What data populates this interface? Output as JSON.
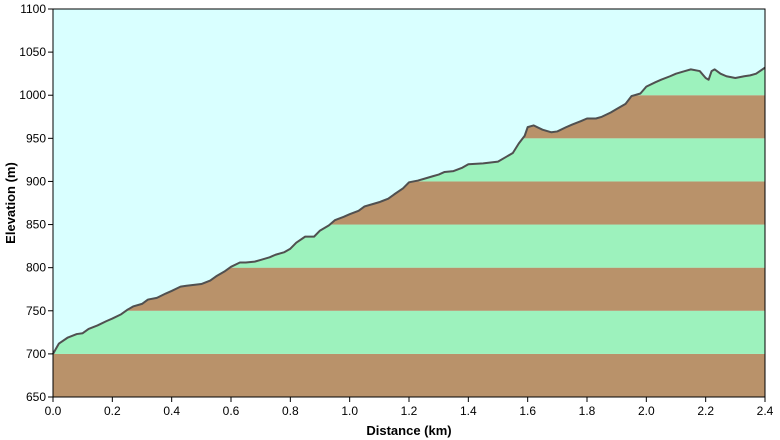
{
  "chart_data": {
    "type": "area",
    "title": "",
    "xlabel": "Distance  (km)",
    "ylabel": "Elevation (m)",
    "xlim": [
      0,
      2.4
    ],
    "ylim": [
      650,
      1100
    ],
    "x_ticks": [
      "0.0",
      "0.2",
      "0.4",
      "0.6",
      "0.8",
      "1.0",
      "1.2",
      "1.4",
      "1.6",
      "1.8",
      "2.0",
      "2.2",
      "2.4"
    ],
    "y_ticks": [
      "650",
      "700",
      "750",
      "800",
      "850",
      "900",
      "950",
      "1000",
      "1050",
      "1100"
    ],
    "grid": false,
    "legend": "none",
    "colors": {
      "sky": "#d9ffff",
      "band_brown": "#b9926a",
      "band_green": "#9df2bd",
      "profile_line": "#505050",
      "axis": "#000000"
    },
    "band_order_from_650": [
      "brown",
      "green",
      "brown",
      "green",
      "brown",
      "green",
      "brown",
      "green"
    ],
    "series": [
      {
        "values": [
          [
            0.0,
            700
          ],
          [
            0.02,
            712
          ],
          [
            0.05,
            719
          ],
          [
            0.08,
            723
          ],
          [
            0.1,
            724
          ],
          [
            0.12,
            729
          ],
          [
            0.15,
            733
          ],
          [
            0.18,
            738
          ],
          [
            0.2,
            741
          ],
          [
            0.23,
            746
          ],
          [
            0.25,
            751
          ],
          [
            0.27,
            755
          ],
          [
            0.3,
            758
          ],
          [
            0.32,
            763
          ],
          [
            0.35,
            765
          ],
          [
            0.38,
            770
          ],
          [
            0.4,
            773
          ],
          [
            0.43,
            778
          ],
          [
            0.45,
            779
          ],
          [
            0.5,
            781
          ],
          [
            0.53,
            785
          ],
          [
            0.55,
            790
          ],
          [
            0.58,
            796
          ],
          [
            0.6,
            801
          ],
          [
            0.63,
            806
          ],
          [
            0.65,
            806
          ],
          [
            0.68,
            807
          ],
          [
            0.7,
            809
          ],
          [
            0.73,
            812
          ],
          [
            0.75,
            815
          ],
          [
            0.78,
            818
          ],
          [
            0.8,
            822
          ],
          [
            0.82,
            829
          ],
          [
            0.85,
            836
          ],
          [
            0.88,
            836
          ],
          [
            0.9,
            843
          ],
          [
            0.93,
            849
          ],
          [
            0.95,
            855
          ],
          [
            0.98,
            859
          ],
          [
            1.0,
            862
          ],
          [
            1.03,
            866
          ],
          [
            1.05,
            871
          ],
          [
            1.08,
            874
          ],
          [
            1.1,
            876
          ],
          [
            1.13,
            880
          ],
          [
            1.15,
            885
          ],
          [
            1.18,
            892
          ],
          [
            1.2,
            899
          ],
          [
            1.23,
            901
          ],
          [
            1.25,
            903
          ],
          [
            1.28,
            906
          ],
          [
            1.3,
            908
          ],
          [
            1.32,
            911
          ],
          [
            1.35,
            912
          ],
          [
            1.38,
            916
          ],
          [
            1.4,
            920
          ],
          [
            1.45,
            921
          ],
          [
            1.5,
            923
          ],
          [
            1.53,
            929
          ],
          [
            1.55,
            933
          ],
          [
            1.57,
            944
          ],
          [
            1.59,
            953
          ],
          [
            1.6,
            963
          ],
          [
            1.62,
            965
          ],
          [
            1.65,
            960
          ],
          [
            1.68,
            957
          ],
          [
            1.7,
            958
          ],
          [
            1.73,
            963
          ],
          [
            1.75,
            966
          ],
          [
            1.78,
            970
          ],
          [
            1.8,
            973
          ],
          [
            1.83,
            973
          ],
          [
            1.85,
            975
          ],
          [
            1.88,
            980
          ],
          [
            1.9,
            984
          ],
          [
            1.93,
            990
          ],
          [
            1.95,
            999
          ],
          [
            1.98,
            1002
          ],
          [
            2.0,
            1010
          ],
          [
            2.03,
            1015
          ],
          [
            2.05,
            1018
          ],
          [
            2.08,
            1022
          ],
          [
            2.1,
            1025
          ],
          [
            2.13,
            1028
          ],
          [
            2.15,
            1030
          ],
          [
            2.18,
            1028
          ],
          [
            2.2,
            1020
          ],
          [
            2.21,
            1018
          ],
          [
            2.22,
            1028
          ],
          [
            2.23,
            1030
          ],
          [
            2.25,
            1025
          ],
          [
            2.27,
            1022
          ],
          [
            2.3,
            1020
          ],
          [
            2.33,
            1022
          ],
          [
            2.35,
            1023
          ],
          [
            2.37,
            1025
          ],
          [
            2.4,
            1032
          ]
        ]
      }
    ]
  }
}
